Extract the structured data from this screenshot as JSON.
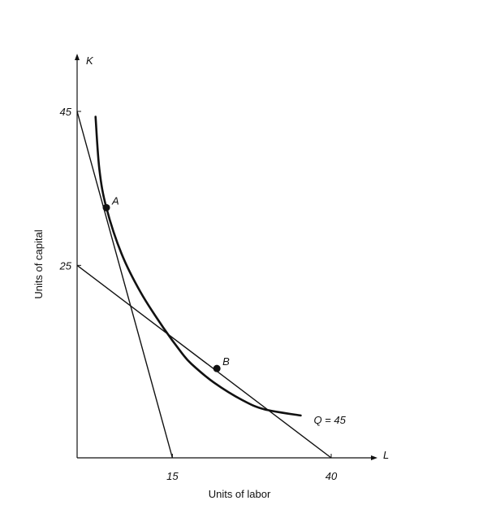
{
  "chart_data": {
    "type": "line",
    "title": "",
    "xlabel": "Units of labor",
    "ylabel": "Units of capital",
    "x_axis_letter": "L",
    "y_axis_letter": "K",
    "x_ticks": [
      15,
      40
    ],
    "y_ticks": [
      25,
      45
    ],
    "xlim": [
      0,
      41
    ],
    "ylim": [
      0,
      48
    ],
    "grid": false,
    "isoquant": {
      "label": "Q = 45",
      "points": [
        [
          2.9,
          44.3
        ],
        [
          3.5,
          37.5
        ],
        [
          4.6,
          32.5
        ],
        [
          7.0,
          26.5
        ],
        [
          10.0,
          21.5
        ],
        [
          13.5,
          17.0
        ],
        [
          16.5,
          13.6
        ],
        [
          18.0,
          12.2
        ],
        [
          21.5,
          9.8
        ],
        [
          26.0,
          7.5
        ],
        [
          29.5,
          6.3
        ],
        [
          35.2,
          5.5
        ]
      ]
    },
    "isocost_lines": [
      {
        "from": [
          0,
          45
        ],
        "to": [
          15,
          0
        ]
      },
      {
        "from": [
          0,
          25
        ],
        "to": [
          40,
          0
        ]
      }
    ],
    "points": [
      {
        "label": "A",
        "x": 4.6,
        "y": 32.5
      },
      {
        "label": "B",
        "x": 22,
        "y": 11.6
      }
    ]
  }
}
